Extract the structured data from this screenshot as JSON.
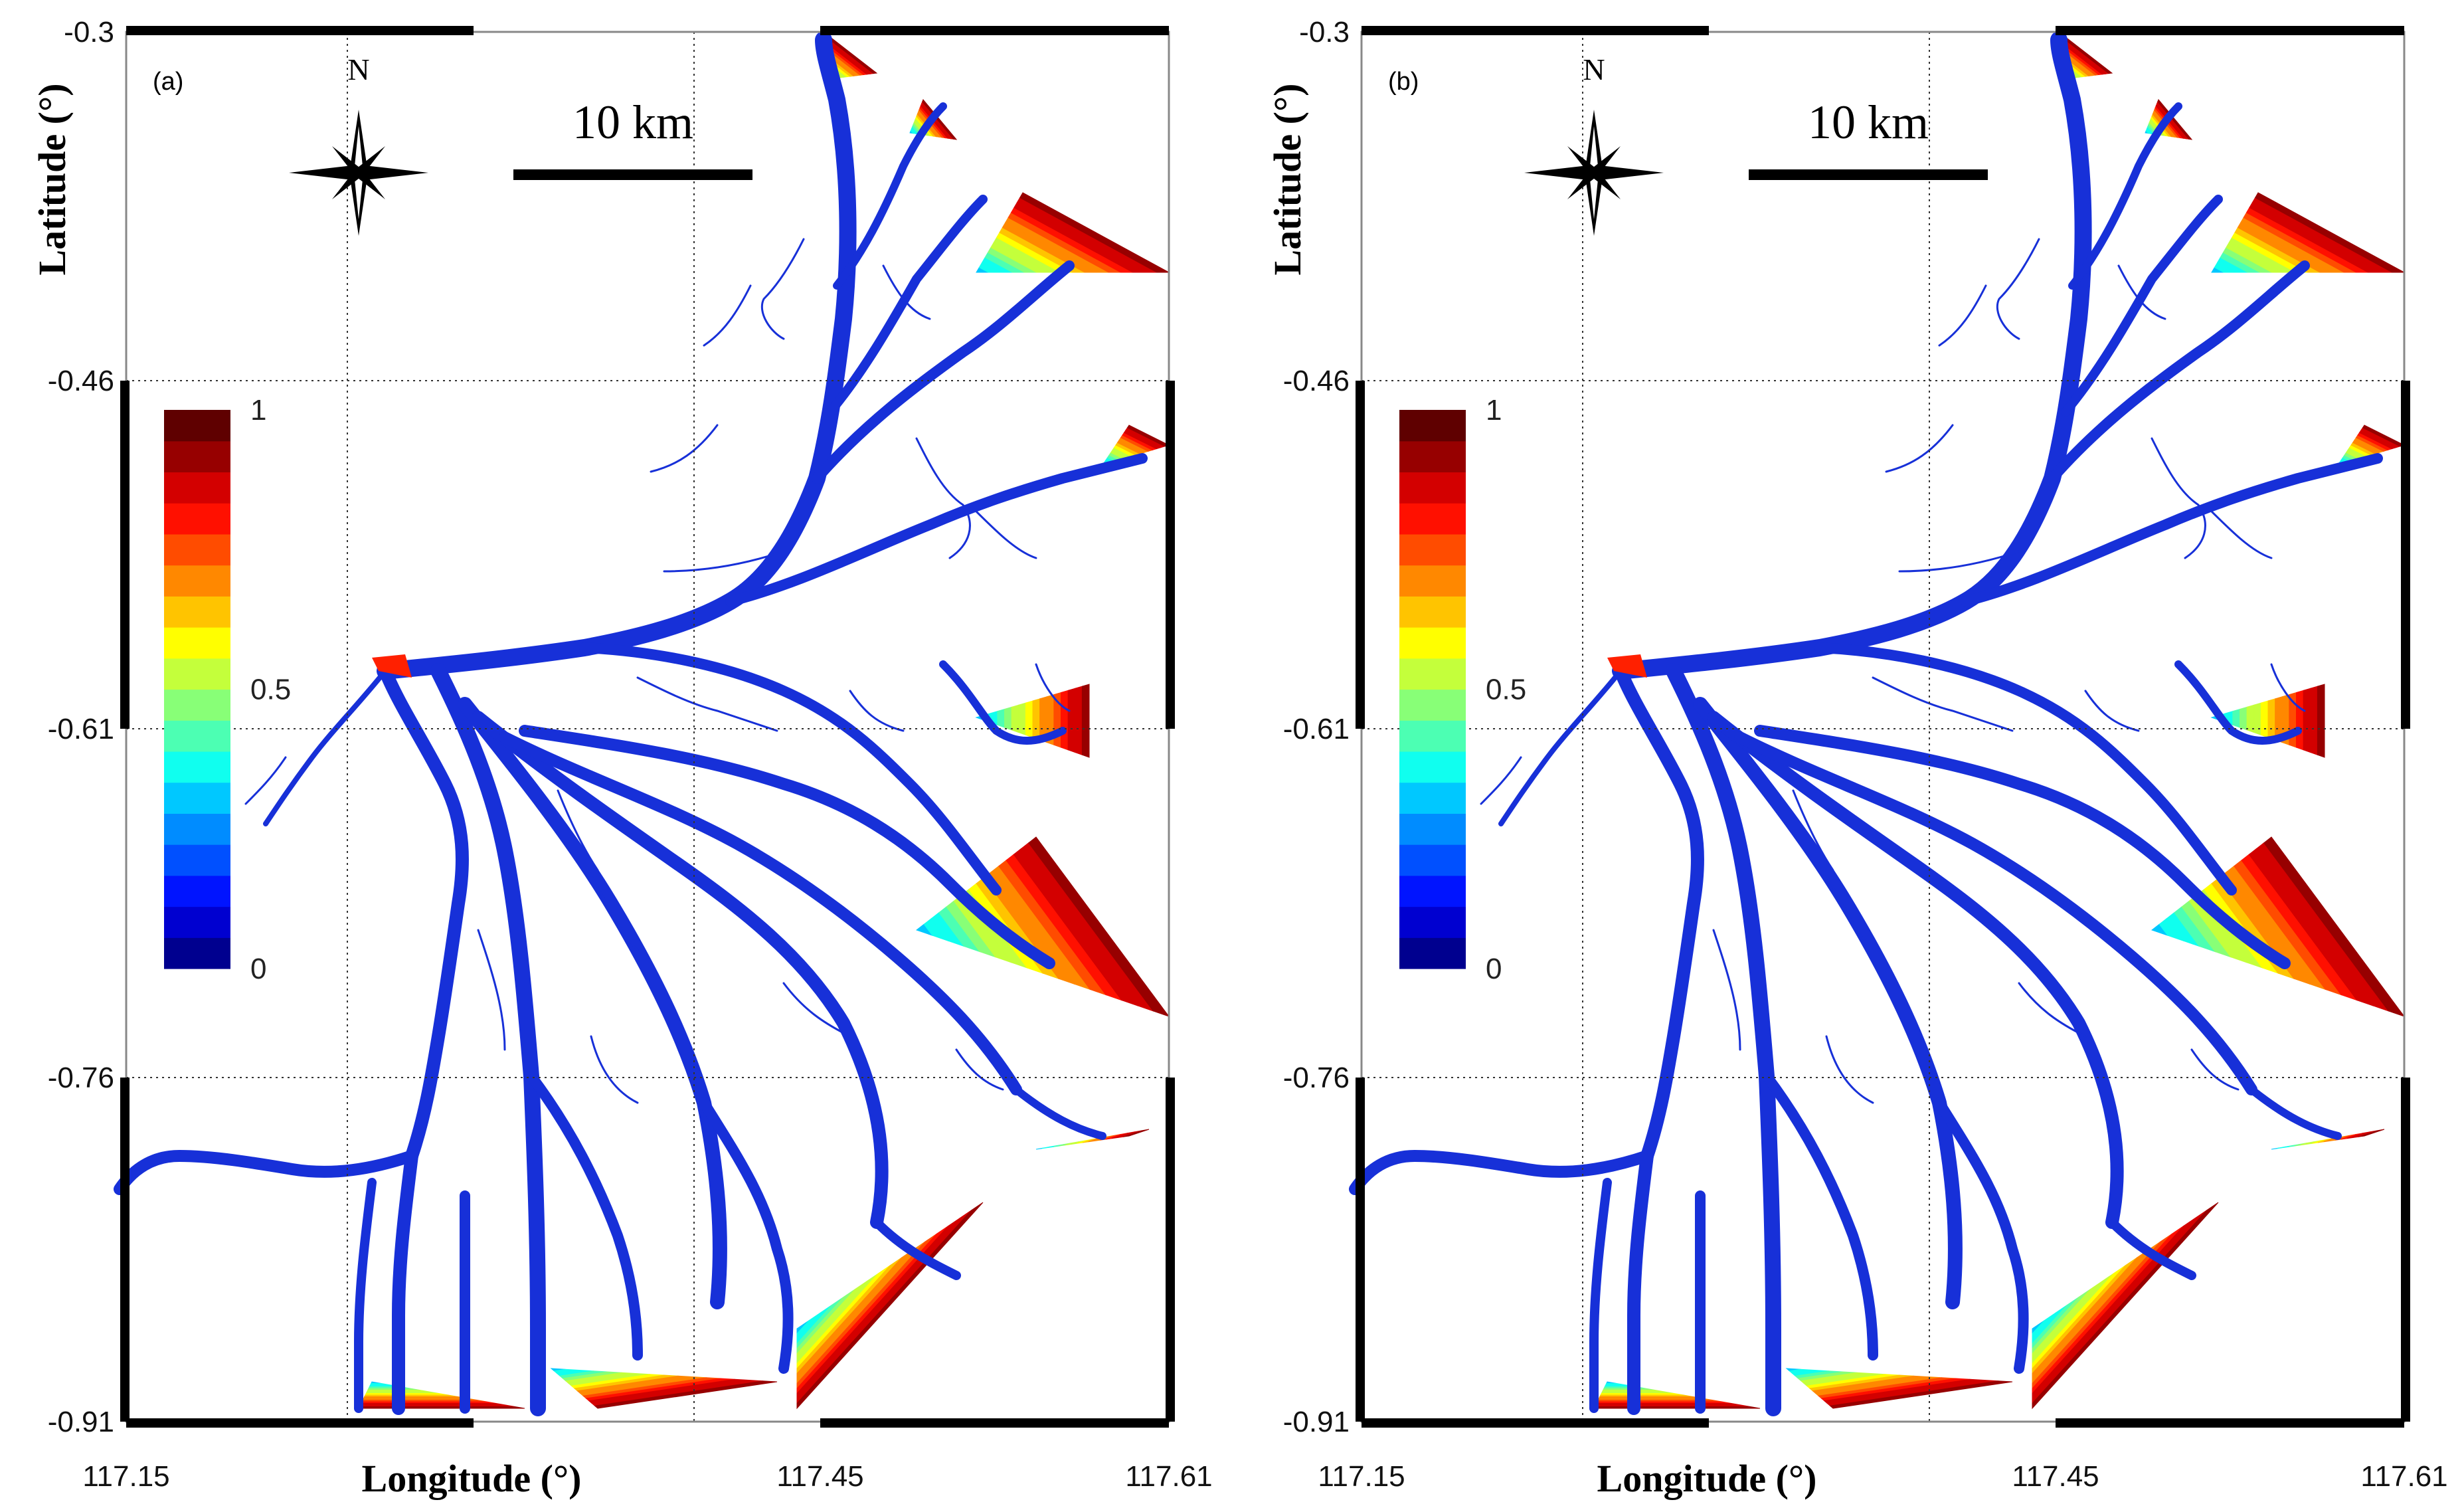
{
  "panels": [
    {
      "id": "a",
      "label": "(a)",
      "north_label": "N",
      "scale_label": "10 km",
      "x_axis_title": "Longitude (°)",
      "y_axis_title": "Latitude (°)",
      "x_ticks": [
        "117.15",
        "117.45",
        "117.61"
      ],
      "y_ticks": [
        "-0.3",
        "-0.46",
        "-0.61",
        "-0.76",
        "-0.91"
      ],
      "colorbar_ticks": [
        "1",
        "0.5",
        "0"
      ]
    },
    {
      "id": "b",
      "label": "(b)",
      "north_label": "N",
      "scale_label": "10 km",
      "x_axis_title": "Longitude (°)",
      "y_axis_title": "Latitude (°)",
      "x_ticks": [
        "117.15",
        "117.45",
        "117.61"
      ],
      "y_ticks": [
        "-0.3",
        "-0.46",
        "-0.61",
        "-0.76",
        "-0.91"
      ],
      "colorbar_ticks": [
        "1",
        "0.5",
        "0"
      ]
    }
  ],
  "colormap": [
    "#00008f",
    "#0000d0",
    "#0014ff",
    "#0050ff",
    "#008cff",
    "#00c8ff",
    "#10ffef",
    "#4cffb3",
    "#88ff77",
    "#c4ff3b",
    "#ffff00",
    "#ffc400",
    "#ff8800",
    "#ff4c00",
    "#ff1000",
    "#d30000",
    "#970000",
    "#5f0000"
  ],
  "channel_color": "#1730d8"
}
